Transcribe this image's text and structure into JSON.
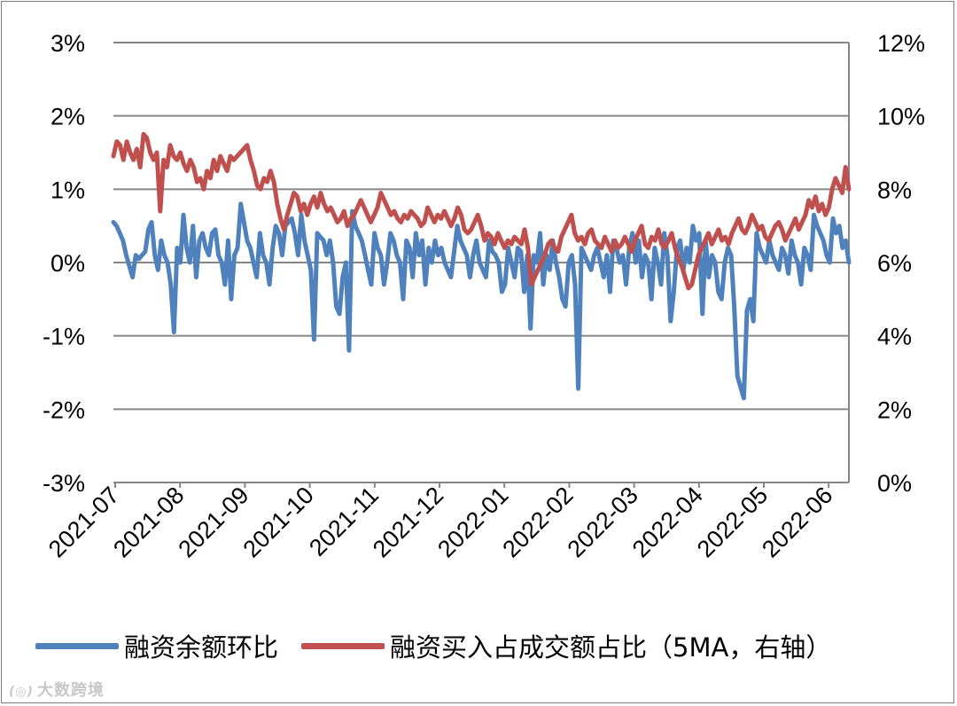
{
  "chart_data": {
    "type": "line",
    "title": "",
    "left_axis": {
      "ticks": [
        "3%",
        "2%",
        "1%",
        "0%",
        "-1%",
        "-2%",
        "-3%"
      ],
      "range": [
        -3,
        3
      ],
      "unit": "%"
    },
    "right_axis": {
      "ticks": [
        "12%",
        "10%",
        "8%",
        "6%",
        "4%",
        "2%",
        "0%"
      ],
      "range": [
        0,
        12
      ],
      "unit": "%"
    },
    "x_ticks": [
      "2021-07",
      "2021-08",
      "2021-09",
      "2021-10",
      "2021-11",
      "2021-12",
      "2022-01",
      "2022-02",
      "2022-03",
      "2022-04",
      "2022-05",
      "2022-06"
    ],
    "grid": "horizontal",
    "legend_position": "bottom",
    "series": [
      {
        "name": "融资余额环比",
        "axis": "left",
        "color": "#4f81bd",
        "values": [
          0.55,
          0.5,
          0.4,
          0.3,
          0.1,
          -0.05,
          -0.2,
          0.1,
          0.05,
          0.1,
          0.15,
          0.45,
          0.55,
          0.1,
          -0.1,
          0.3,
          0.1,
          0.0,
          -0.3,
          -0.95,
          0.2,
          0.0,
          0.65,
          0.2,
          0.0,
          0.5,
          -0.2,
          0.3,
          0.4,
          0.2,
          0.1,
          0.4,
          0.45,
          0.1,
          0.0,
          -0.3,
          0.3,
          -0.5,
          0.1,
          0.2,
          0.8,
          0.55,
          0.3,
          0.2,
          0.0,
          -0.2,
          0.4,
          0.1,
          0.0,
          -0.3,
          0.2,
          0.5,
          0.4,
          0.1,
          0.5,
          0.55,
          0.6,
          0.4,
          0.1,
          0.65,
          0.3,
          0.1,
          -0.1,
          -1.05,
          0.4,
          0.35,
          0.3,
          0.1,
          0.3,
          0.0,
          -0.6,
          -0.7,
          -0.2,
          0.0,
          -1.2,
          0.7,
          0.5,
          0.4,
          0.3,
          0.1,
          -0.1,
          -0.3,
          0.4,
          0.2,
          0.1,
          -0.3,
          0.0,
          0.4,
          0.3,
          0.1,
          0.0,
          -0.5,
          0.3,
          0.2,
          -0.2,
          0.4,
          0.1,
          0.3,
          -0.3,
          0.2,
          0.0,
          0.3,
          0.1,
          0.2,
          0.0,
          -0.1,
          -0.2,
          0.15,
          0.5,
          0.3,
          0.2,
          0.1,
          -0.2,
          0.1,
          0.3,
          0.0,
          -0.1,
          -0.2,
          0.3,
          0.15,
          0.1,
          0.0,
          -0.4,
          -0.3,
          0.2,
          0.0,
          -0.2,
          0.2,
          0.15,
          -0.4,
          0.1,
          -0.9,
          0.1,
          0.0,
          0.4,
          -0.3,
          0.1,
          -0.1,
          0.3,
          0.0,
          -0.2,
          -0.5,
          -0.6,
          0.0,
          0.1,
          -0.3,
          -1.72,
          0.2,
          0.1,
          0.0,
          -0.1,
          0.1,
          0.2,
          0.0,
          -0.2,
          0.1,
          -0.4,
          0.3,
          0.2,
          0.0,
          0.1,
          -0.3,
          0.2,
          0.4,
          0.0,
          0.3,
          -0.2,
          0.1,
          0.0,
          -0.5,
          0.2,
          0.0,
          -0.3,
          0.4,
          0.1,
          -0.8,
          -0.4,
          0.2,
          0.3,
          -0.1,
          0.2,
          0.0,
          0.5,
          0.3,
          0.4,
          -0.7,
          0.3,
          -0.2,
          0.1,
          0.0,
          -0.4,
          -0.5,
          0.0,
          0.2,
          0.1,
          -0.6,
          -1.55,
          -1.7,
          -1.85,
          -0.65,
          -0.5,
          -0.8,
          0.4,
          0.2,
          0.1,
          0.0,
          0.3,
          0.1,
          0.0,
          -0.1,
          0.2,
          0.1,
          -0.15,
          0.3,
          0.1,
          0.0,
          -0.3,
          0.2,
          0.1,
          -0.1,
          0.65,
          0.5,
          0.4,
          0.3,
          0.1,
          0.0,
          0.6,
          0.4,
          0.5,
          0.2,
          0.3,
          0.0
        ]
      },
      {
        "name": "融资买入占成交额占比（5MA，右轴）",
        "axis": "right",
        "color": "#c0504d",
        "values": [
          8.9,
          9.3,
          9.2,
          8.8,
          9.3,
          9.0,
          8.8,
          9.1,
          8.6,
          9.5,
          9.4,
          9.0,
          8.8,
          9.0,
          7.4,
          8.8,
          8.6,
          9.2,
          8.9,
          8.8,
          9.0,
          8.7,
          8.5,
          8.8,
          8.6,
          8.2,
          8.3,
          8.0,
          8.5,
          8.3,
          8.8,
          8.5,
          8.9,
          8.7,
          8.5,
          8.9,
          8.8,
          8.9,
          9.0,
          9.1,
          9.2,
          8.8,
          8.5,
          8.1,
          8.0,
          8.3,
          8.2,
          8.5,
          8.2,
          7.6,
          7.2,
          6.9,
          7.3,
          7.6,
          7.9,
          7.8,
          7.4,
          7.6,
          7.3,
          7.6,
          7.8,
          7.5,
          7.9,
          7.6,
          7.4,
          7.5,
          7.3,
          7.1,
          7.2,
          7.4,
          7.0,
          7.2,
          7.3,
          7.5,
          7.7,
          7.5,
          7.3,
          7.1,
          7.3,
          7.5,
          7.9,
          7.7,
          7.5,
          7.3,
          7.4,
          7.2,
          7.1,
          7.3,
          7.2,
          7.4,
          7.3,
          7.2,
          7.0,
          7.1,
          7.5,
          7.3,
          7.1,
          7.3,
          7.2,
          7.4,
          7.2,
          7.0,
          7.2,
          7.5,
          7.3,
          6.9,
          6.8,
          6.9,
          7.1,
          7.3,
          7.0,
          6.6,
          6.8,
          6.7,
          6.5,
          6.8,
          6.6,
          6.4,
          6.6,
          6.5,
          6.7,
          6.6,
          6.5,
          6.9,
          6.4,
          5.4,
          5.6,
          5.8,
          6.0,
          6.2,
          6.5,
          6.6,
          6.4,
          6.3,
          6.7,
          6.9,
          7.1,
          7.3,
          6.8,
          6.6,
          6.7,
          6.5,
          6.8,
          6.9,
          6.6,
          6.5,
          6.4,
          6.7,
          6.5,
          6.3,
          6.6,
          6.4,
          6.5,
          6.7,
          6.5,
          6.3,
          6.6,
          6.8,
          7.0,
          6.5,
          6.4,
          6.7,
          6.6,
          6.9,
          6.5,
          6.4,
          6.6,
          6.8,
          6.4,
          6.1,
          5.9,
          5.6,
          5.3,
          5.4,
          5.8,
          6.2,
          6.4,
          6.6,
          6.8,
          6.5,
          6.7,
          6.9,
          6.6,
          6.7,
          6.5,
          6.8,
          7.0,
          7.2,
          6.9,
          6.8,
          7.0,
          7.3,
          7.1,
          6.9,
          7.0,
          6.7,
          6.6,
          6.8,
          7.0,
          7.1,
          6.9,
          6.6,
          6.8,
          7.0,
          7.2,
          6.9,
          7.1,
          7.3,
          7.7,
          7.5,
          7.8,
          7.4,
          7.6,
          7.3,
          7.5,
          8.0,
          8.3,
          8.1,
          7.9,
          8.6,
          8.0
        ]
      }
    ]
  },
  "legend": [
    {
      "label": "融资余额环比",
      "color": "#4f81bd"
    },
    {
      "label": "融资买入占成交额占比（5MA，右轴）",
      "color": "#c0504d"
    }
  ],
  "watermark": {
    "text": "大数跨境",
    "icon": "logo-icon"
  }
}
